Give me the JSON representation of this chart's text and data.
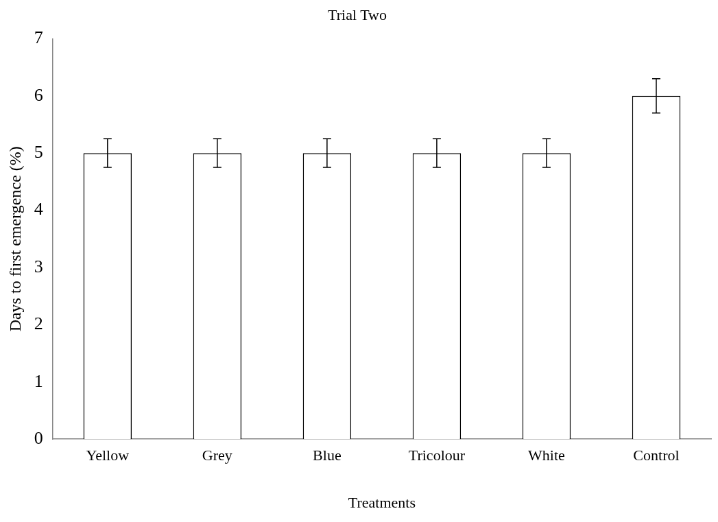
{
  "chart_data": {
    "type": "bar",
    "title": "Trial Two",
    "xlabel": "Treatments",
    "ylabel": "Days to first emergence (%)",
    "categories": [
      "Yellow",
      "Grey",
      "Blue",
      "Tricolour",
      "White",
      "Control"
    ],
    "values": [
      5,
      5,
      5,
      5,
      5,
      6
    ],
    "errors": [
      0.25,
      0.25,
      0.25,
      0.25,
      0.25,
      0.3
    ],
    "color": "#ffffff",
    "ylim": [
      0,
      7
    ],
    "yticks": [
      0,
      1,
      2,
      3,
      4,
      5,
      6,
      7
    ],
    "grid": false,
    "legend": false
  }
}
